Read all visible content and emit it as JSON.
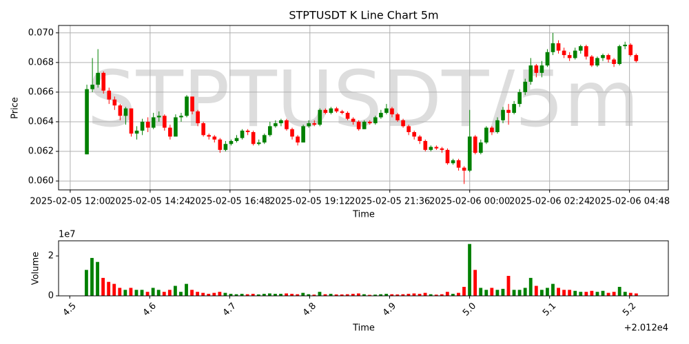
{
  "chart_data": [
    {
      "type": "candlestick",
      "title": "STPTUSDT K Line Chart 5m",
      "watermark": "STPTUSDT/5m",
      "xlabel": "Time",
      "ylabel": "Price",
      "grid": true,
      "up_color": "green",
      "down_color": "red",
      "xlim": [
        "2025-02-05 11:39",
        "2025-02-06 05:58"
      ],
      "xticks": [
        "2025-02-05 12:00",
        "2025-02-05 14:24",
        "2025-02-05 16:48",
        "2025-02-05 19:12",
        "2025-02-05 21:36",
        "2025-02-06 00:00",
        "2025-02-06 02:24",
        "2025-02-06 04:48"
      ],
      "ylim": [
        0.0594,
        0.0705
      ],
      "yticks": [
        {
          "value": 0.06,
          "label": "0.060"
        },
        {
          "value": 0.062,
          "label": "0.062"
        },
        {
          "value": 0.064,
          "label": "0.064"
        },
        {
          "value": 0.066,
          "label": "0.066"
        },
        {
          "value": 0.068,
          "label": "0.068"
        },
        {
          "value": 0.07,
          "label": "0.070"
        }
      ],
      "x": [
        "2025-02-05 12:30",
        "2025-02-05 12:40",
        "2025-02-05 12:50",
        "2025-02-05 13:00",
        "2025-02-05 13:10",
        "2025-02-05 13:20",
        "2025-02-05 13:30",
        "2025-02-05 13:40",
        "2025-02-05 13:50",
        "2025-02-05 14:00",
        "2025-02-05 14:10",
        "2025-02-05 14:20",
        "2025-02-05 14:30",
        "2025-02-05 14:40",
        "2025-02-05 14:50",
        "2025-02-05 15:00",
        "2025-02-05 15:10",
        "2025-02-05 15:20",
        "2025-02-05 15:30",
        "2025-02-05 15:40",
        "2025-02-05 15:50",
        "2025-02-05 16:00",
        "2025-02-05 16:10",
        "2025-02-05 16:20",
        "2025-02-05 16:30",
        "2025-02-05 16:40",
        "2025-02-05 16:50",
        "2025-02-05 17:00",
        "2025-02-05 17:10",
        "2025-02-05 17:20",
        "2025-02-05 17:30",
        "2025-02-05 17:40",
        "2025-02-05 17:50",
        "2025-02-05 18:00",
        "2025-02-05 18:10",
        "2025-02-05 18:20",
        "2025-02-05 18:30",
        "2025-02-05 18:40",
        "2025-02-05 18:50",
        "2025-02-05 19:00",
        "2025-02-05 19:10",
        "2025-02-05 19:20",
        "2025-02-05 19:30",
        "2025-02-05 19:40",
        "2025-02-05 19:50",
        "2025-02-05 20:00",
        "2025-02-05 20:10",
        "2025-02-05 20:20",
        "2025-02-05 20:30",
        "2025-02-05 20:40",
        "2025-02-05 20:50",
        "2025-02-05 21:00",
        "2025-02-05 21:10",
        "2025-02-05 21:20",
        "2025-02-05 21:30",
        "2025-02-05 21:40",
        "2025-02-05 21:50",
        "2025-02-05 22:00",
        "2025-02-05 22:10",
        "2025-02-05 22:20",
        "2025-02-05 22:30",
        "2025-02-05 22:40",
        "2025-02-05 22:50",
        "2025-02-05 23:00",
        "2025-02-05 23:10",
        "2025-02-05 23:20",
        "2025-02-05 23:30",
        "2025-02-05 23:40",
        "2025-02-05 23:50",
        "2025-02-06 00:00",
        "2025-02-06 00:10",
        "2025-02-06 00:20",
        "2025-02-06 00:30",
        "2025-02-06 00:40",
        "2025-02-06 00:50",
        "2025-02-06 01:00",
        "2025-02-06 01:10",
        "2025-02-06 01:20",
        "2025-02-06 01:30",
        "2025-02-06 01:40",
        "2025-02-06 01:50",
        "2025-02-06 02:00",
        "2025-02-06 02:10",
        "2025-02-06 02:20",
        "2025-02-06 02:30",
        "2025-02-06 02:40",
        "2025-02-06 02:50",
        "2025-02-06 03:00",
        "2025-02-06 03:10",
        "2025-02-06 03:20",
        "2025-02-06 03:30",
        "2025-02-06 03:40",
        "2025-02-06 03:50",
        "2025-02-06 04:00",
        "2025-02-06 04:10",
        "2025-02-06 04:20",
        "2025-02-06 04:30",
        "2025-02-06 04:40",
        "2025-02-06 04:50",
        "2025-02-06 05:00"
      ],
      "open": [
        0.0618,
        0.0662,
        0.0665,
        0.0673,
        0.0661,
        0.0655,
        0.0651,
        0.0644,
        0.0649,
        0.0632,
        0.0634,
        0.064,
        0.0636,
        0.0643,
        0.0644,
        0.0636,
        0.063,
        0.0643,
        0.0644,
        0.0657,
        0.0647,
        0.0639,
        0.0631,
        0.063,
        0.0628,
        0.0621,
        0.0625,
        0.0627,
        0.0629,
        0.0634,
        0.0633,
        0.0625,
        0.0626,
        0.0631,
        0.0637,
        0.0639,
        0.0641,
        0.0635,
        0.063,
        0.0626,
        0.0637,
        0.0639,
        0.0638,
        0.0648,
        0.0646,
        0.0649,
        0.0647,
        0.0646,
        0.0642,
        0.064,
        0.0635,
        0.064,
        0.0639,
        0.0643,
        0.0646,
        0.0649,
        0.0645,
        0.0641,
        0.0637,
        0.0633,
        0.063,
        0.0627,
        0.0621,
        0.0623,
        0.0622,
        0.0621,
        0.0612,
        0.0614,
        0.0609,
        0.0607,
        0.063,
        0.0619,
        0.0626,
        0.0636,
        0.0633,
        0.0641,
        0.0648,
        0.0646,
        0.0652,
        0.066,
        0.0667,
        0.0678,
        0.0673,
        0.0678,
        0.0687,
        0.0693,
        0.0688,
        0.0685,
        0.0683,
        0.0688,
        0.0691,
        0.0684,
        0.0678,
        0.0683,
        0.0685,
        0.0682,
        0.0679,
        0.0691,
        0.0692,
        0.0685
      ],
      "high": [
        0.0665,
        0.0683,
        0.0689,
        0.0674,
        0.0663,
        0.0657,
        0.0652,
        0.065,
        0.0649,
        0.0637,
        0.0642,
        0.0643,
        0.0646,
        0.0647,
        0.0645,
        0.0638,
        0.0645,
        0.0646,
        0.0658,
        0.0657,
        0.0648,
        0.064,
        0.0632,
        0.0631,
        0.0629,
        0.0627,
        0.0628,
        0.0631,
        0.0635,
        0.0635,
        0.0634,
        0.0628,
        0.0632,
        0.064,
        0.0641,
        0.0642,
        0.0642,
        0.0636,
        0.0631,
        0.0638,
        0.0641,
        0.0641,
        0.0649,
        0.0649,
        0.065,
        0.065,
        0.0648,
        0.0647,
        0.0643,
        0.0641,
        0.0641,
        0.0641,
        0.0644,
        0.0648,
        0.0652,
        0.065,
        0.0646,
        0.0642,
        0.0638,
        0.0634,
        0.0631,
        0.0628,
        0.0624,
        0.0624,
        0.0623,
        0.0622,
        0.0615,
        0.0615,
        0.061,
        0.0648,
        0.0631,
        0.0628,
        0.0637,
        0.0637,
        0.0643,
        0.065,
        0.0652,
        0.0654,
        0.0662,
        0.0669,
        0.0683,
        0.0679,
        0.0681,
        0.0689,
        0.07,
        0.0695,
        0.069,
        0.0687,
        0.069,
        0.0692,
        0.0692,
        0.0685,
        0.0684,
        0.0686,
        0.0686,
        0.0683,
        0.0692,
        0.0694,
        0.0693,
        0.0686
      ],
      "low": [
        0.0618,
        0.066,
        0.0663,
        0.0659,
        0.0652,
        0.0648,
        0.0641,
        0.0638,
        0.063,
        0.0628,
        0.0631,
        0.0633,
        0.0635,
        0.064,
        0.0634,
        0.0628,
        0.063,
        0.064,
        0.0643,
        0.0645,
        0.0637,
        0.063,
        0.0628,
        0.0626,
        0.0619,
        0.062,
        0.0624,
        0.0626,
        0.0628,
        0.0631,
        0.0624,
        0.0624,
        0.0625,
        0.063,
        0.0636,
        0.0637,
        0.0634,
        0.0628,
        0.0624,
        0.0626,
        0.0636,
        0.0637,
        0.0637,
        0.0645,
        0.0645,
        0.0646,
        0.0645,
        0.0641,
        0.0638,
        0.0634,
        0.0635,
        0.0638,
        0.0638,
        0.0642,
        0.0645,
        0.0643,
        0.064,
        0.0636,
        0.0631,
        0.0628,
        0.0625,
        0.062,
        0.062,
        0.0621,
        0.0619,
        0.0611,
        0.0611,
        0.0607,
        0.0598,
        0.0606,
        0.0618,
        0.0618,
        0.0625,
        0.0631,
        0.0632,
        0.0639,
        0.0638,
        0.0645,
        0.065,
        0.0658,
        0.0665,
        0.067,
        0.067,
        0.0677,
        0.0685,
        0.0686,
        0.0683,
        0.0681,
        0.0682,
        0.0686,
        0.0682,
        0.0677,
        0.0677,
        0.0681,
        0.068,
        0.0677,
        0.0678,
        0.0689,
        0.0684,
        0.068
      ],
      "close": [
        0.0662,
        0.0665,
        0.0673,
        0.0661,
        0.0655,
        0.0651,
        0.0644,
        0.0649,
        0.0632,
        0.0634,
        0.064,
        0.0636,
        0.0643,
        0.0644,
        0.0636,
        0.063,
        0.0643,
        0.0644,
        0.0657,
        0.0647,
        0.0639,
        0.0631,
        0.063,
        0.0628,
        0.0621,
        0.0625,
        0.0627,
        0.0629,
        0.0634,
        0.0633,
        0.0625,
        0.0626,
        0.0631,
        0.0637,
        0.0639,
        0.0641,
        0.0635,
        0.063,
        0.0626,
        0.0637,
        0.0639,
        0.0638,
        0.0648,
        0.0646,
        0.0649,
        0.0647,
        0.0646,
        0.0642,
        0.064,
        0.0635,
        0.064,
        0.0639,
        0.0643,
        0.0646,
        0.0649,
        0.0645,
        0.0641,
        0.0637,
        0.0633,
        0.063,
        0.0627,
        0.0621,
        0.0623,
        0.0622,
        0.0621,
        0.0612,
        0.0614,
        0.0609,
        0.0607,
        0.063,
        0.0619,
        0.0626,
        0.0636,
        0.0633,
        0.0641,
        0.0648,
        0.0646,
        0.0652,
        0.066,
        0.0667,
        0.0678,
        0.0673,
        0.0678,
        0.0687,
        0.0693,
        0.0688,
        0.0685,
        0.0683,
        0.0688,
        0.0691,
        0.0684,
        0.0678,
        0.0683,
        0.0685,
        0.0682,
        0.0679,
        0.0691,
        0.0692,
        0.0685,
        0.0681
      ]
    },
    {
      "type": "bar",
      "xlabel": "Time",
      "ylabel": "Volume",
      "x_offset": "+2.012e4",
      "y_offset": "1e7",
      "xlim": [
        20124.486,
        20125.2485
      ],
      "xticks": [
        {
          "value": 20124.5,
          "label": "4.5"
        },
        {
          "value": 20124.6,
          "label": "4.6"
        },
        {
          "value": 20124.7,
          "label": "4.7"
        },
        {
          "value": 20124.8,
          "label": "4.8"
        },
        {
          "value": 20124.9,
          "label": "4.9"
        },
        {
          "value": 20125.0,
          "label": "5.0"
        },
        {
          "value": 20125.1,
          "label": "5.1"
        },
        {
          "value": 20125.2,
          "label": "5.2"
        }
      ],
      "ylim": [
        0,
        27600000
      ],
      "yticks": [
        0,
        {
          "value": 20000000,
          "label": "2"
        }
      ],
      "values": [
        13000000,
        19000000,
        17000000,
        9000000,
        7000000,
        6000000,
        4000000,
        3000000,
        4000000,
        3000000,
        3000000,
        2000000,
        4000000,
        3000000,
        2000000,
        3000000,
        5000000,
        2000000,
        6000000,
        3000000,
        2000000,
        1500000,
        1000000,
        1500000,
        2000000,
        1500000,
        1000000,
        800000,
        1000000,
        800000,
        1000000,
        700000,
        1000000,
        1200000,
        1000000,
        1000000,
        1200000,
        1000000,
        800000,
        1500000,
        800000,
        600000,
        2000000,
        800000,
        1000000,
        700000,
        700000,
        800000,
        1000000,
        1200000,
        800000,
        500000,
        600000,
        800000,
        1000000,
        800000,
        700000,
        800000,
        1000000,
        1200000,
        1000000,
        1500000,
        800000,
        600000,
        800000,
        2000000,
        1000000,
        1500000,
        4500000,
        26000000,
        13000000,
        4000000,
        3000000,
        4000000,
        3000000,
        3500000,
        10000000,
        3000000,
        3000000,
        4000000,
        9000000,
        5000000,
        3000000,
        4000000,
        6000000,
        4000000,
        3000000,
        3000000,
        2500000,
        2000000,
        2000000,
        2500000,
        2000000,
        2500000,
        1500000,
        2000000,
        4500000,
        2000000,
        1500000,
        1200000
      ]
    }
  ]
}
